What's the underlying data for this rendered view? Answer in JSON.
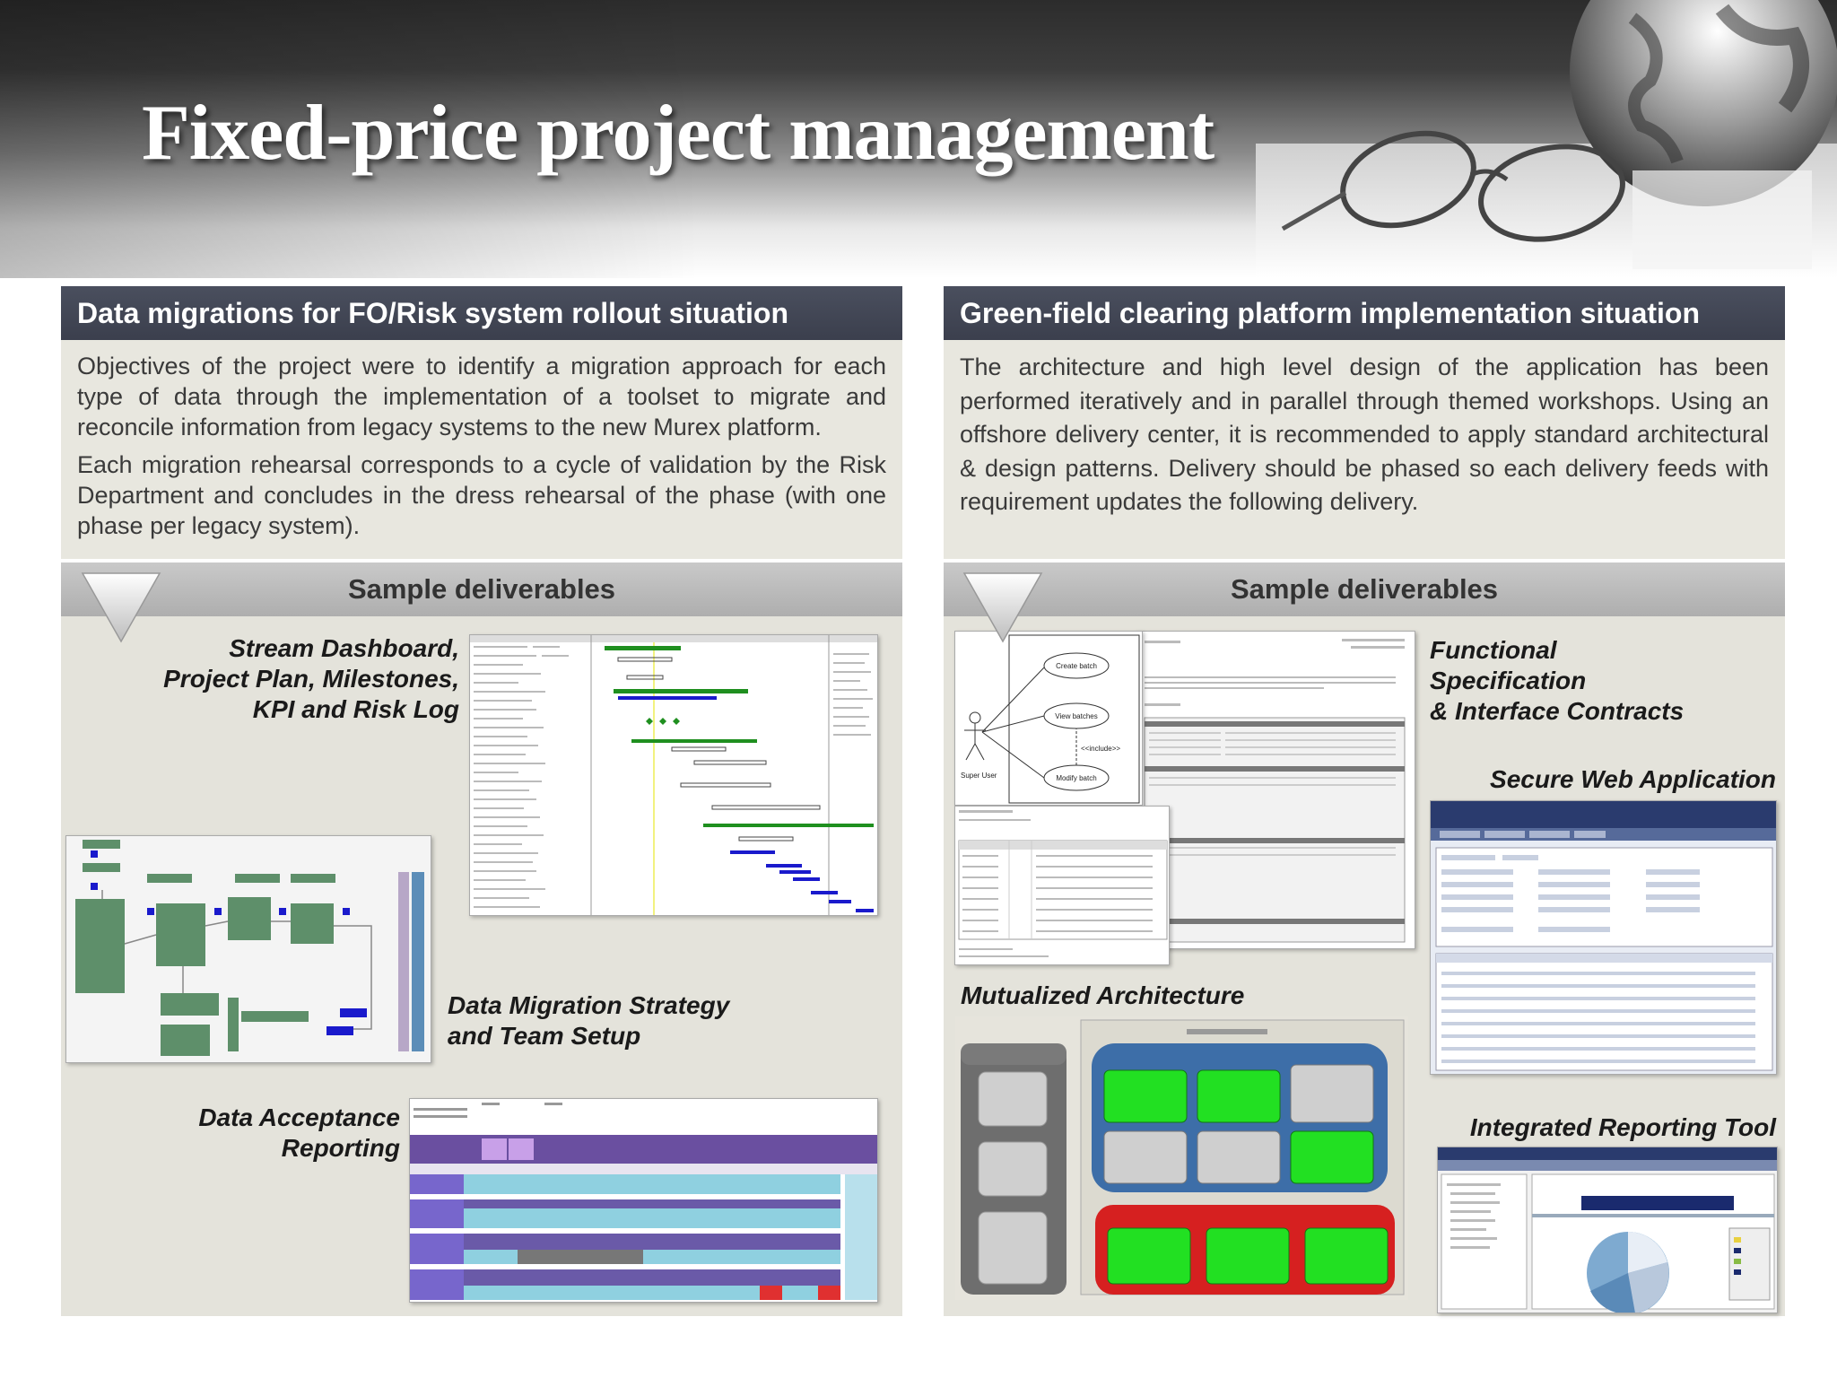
{
  "title": "Fixed-price project management",
  "left": {
    "heading": "Data migrations for FO/Risk system rollout situation",
    "paragraphs": [
      "Objectives of the project were to identify a migration approach for each type of data through the implementation of a toolset to migrate and reconcile information from legacy systems to the new Murex platform.",
      "Each migration rehearsal corresponds to a cycle of validation by the Risk Department and concludes in the dress rehearsal of the phase (with one phase per legacy system)."
    ],
    "deliverables_heading": "Sample deliverables",
    "captions": {
      "dashboard_1": "Stream Dashboard,",
      "dashboard_2": "Project Plan, Milestones,",
      "dashboard_3": "KPI and Risk Log",
      "strategy_1": "Data Migration Strategy",
      "strategy_2": "and Team Setup",
      "acceptance_1": "Data Acceptance",
      "acceptance_2": "Reporting"
    }
  },
  "right": {
    "heading": "Green-field clearing platform implementation situation",
    "paragraphs": [
      "The architecture and high level design of the application has been performed iteratively and in parallel through themed workshops. Using an offshore delivery center, it is recommended to apply standard architectural & design patterns. Delivery should be phased so each delivery feeds with requirement updates the following delivery."
    ],
    "deliverables_heading": "Sample deliverables",
    "captions": {
      "functional_1": "Functional",
      "functional_2": "Specification",
      "functional_3": "& Interface Contracts",
      "secure_web": "Secure Web Application",
      "mutualized": "Mutualized Architecture",
      "reporting_tool": "Integrated Reporting Tool"
    },
    "usecase": {
      "actor": "Super User",
      "create": "Create batch",
      "view": "View batches",
      "include": "<<include>>",
      "modify": "Modify batch"
    }
  },
  "colors": {
    "panel_header": "#3f4352",
    "panel_body": "#e8e7df",
    "deliverables_bar": "#b8b8b8",
    "gantt_green": "#1f8f1f",
    "gantt_blue": "#1a1acc",
    "arch_blue": "#3d6ea8",
    "arch_red": "#d62020",
    "arch_green": "#22e022"
  }
}
